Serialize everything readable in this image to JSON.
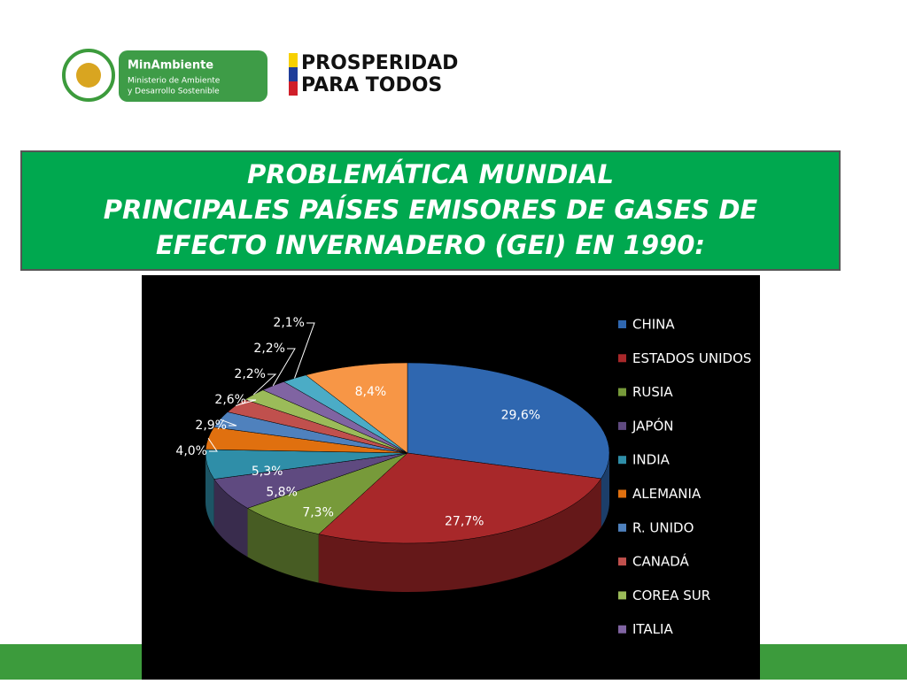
{
  "header": {
    "ministry_name": "MinAmbiente",
    "ministry_line1": "Ministerio de Ambiente",
    "ministry_line2": "y Desarrollo Sostenible",
    "slogan_line1": "PROSPERIDAD",
    "slogan_line2": "PARA TODOS"
  },
  "title_lines": [
    "PROBLEMÁTICA MUNDIAL",
    "PRINCIPALES PAÍSES EMISORES DE GASES DE",
    "EFECTO INVERNADERO (GEI) EN 1990:"
  ],
  "chart_data": {
    "type": "pie",
    "categories": [
      "CHINA",
      "ESTADOS UNIDOS",
      "RUSIA",
      "JAPÓN",
      "INDIA",
      "ALEMANIA",
      "R. UNIDO",
      "CANADÁ",
      "COREA SUR",
      "ITALIA",
      null,
      null
    ],
    "values": [
      29.6,
      27.7,
      7.3,
      5.8,
      5.3,
      4.0,
      2.9,
      2.6,
      2.2,
      2.2,
      2.1,
      8.4
    ],
    "value_labels": [
      "29,6%",
      "27,7%",
      "7,3%",
      "5,8%",
      "5,3%",
      "4,0%",
      "2,9%",
      "2,6%",
      "2,2%",
      "2,2%",
      "2,1%",
      "8,4%"
    ],
    "colors": [
      "#2f67b0",
      "#a8282a",
      "#779a3a",
      "#5f4a80",
      "#2f8ea8",
      "#e0700f",
      "#4f81bd",
      "#c0504d",
      "#9bbb59",
      "#8064a2",
      "#4bacc6",
      "#f79646"
    ],
    "legend": "right"
  }
}
